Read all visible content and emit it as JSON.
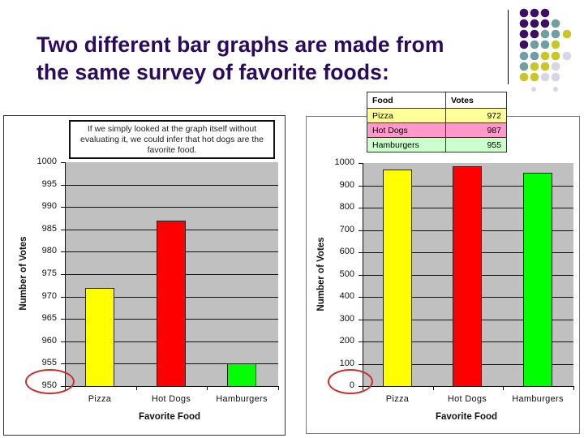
{
  "slide": {
    "title_lines": [
      "Two different bar graphs are made from",
      "the same survey of favorite foods:"
    ],
    "title_color": "#2a0b5c",
    "decoration": {
      "dot_colors": {
        "purple": "#3b0f63",
        "teal": "#6f9fa0",
        "olive": "#c7c72a",
        "lavender": "#d6d6e8"
      }
    }
  },
  "table": {
    "headers": [
      "Food",
      "Votes"
    ],
    "rows": [
      {
        "food": "Pizza",
        "votes": "972",
        "color": "#ffff99"
      },
      {
        "food": "Hot Dogs",
        "votes": "987",
        "color": "#ff99cc"
      },
      {
        "food": "Hamburgers",
        "votes": "955",
        "color": "#ccffcc"
      }
    ]
  },
  "annotation": {
    "note_text": "If we simply looked at the graph itself without evaluating it, we could infer that hot dogs are the favorite food."
  },
  "chart_data": [
    {
      "type": "bar",
      "title": "",
      "categories": [
        "Pizza",
        "Hot Dogs",
        "Hamburgers"
      ],
      "values": [
        972,
        987,
        955
      ],
      "colors": [
        "#ffff00",
        "#ff0000",
        "#00ff00"
      ],
      "xlabel": "Favorite Food",
      "ylabel": "Number of Votes",
      "ylim": [
        950,
        1000
      ],
      "yticks": [
        "1000",
        "995",
        "990",
        "985",
        "980",
        "975",
        "970",
        "965",
        "960",
        "955",
        "950"
      ],
      "grid": true,
      "annotation": "If we simply looked at the graph itself without evaluating it, we could infer that hot dogs are the favorite food.",
      "highlight": "950 circled in red (axis does not start at zero)"
    },
    {
      "type": "bar",
      "title": "",
      "categories": [
        "Pizza",
        "Hot Dogs",
        "Hamburgers"
      ],
      "values": [
        972,
        987,
        955
      ],
      "colors": [
        "#ffff00",
        "#ff0000",
        "#00ff00"
      ],
      "xlabel": "Favorite Food",
      "ylabel": "Number of Votes",
      "ylim": [
        0,
        1000
      ],
      "yticks": [
        "1000",
        "900",
        "800",
        "700",
        "600",
        "500",
        "400",
        "300",
        "200",
        "100",
        "0"
      ],
      "grid": true,
      "highlight": "0 circled in red (axis starts at zero)"
    }
  ]
}
